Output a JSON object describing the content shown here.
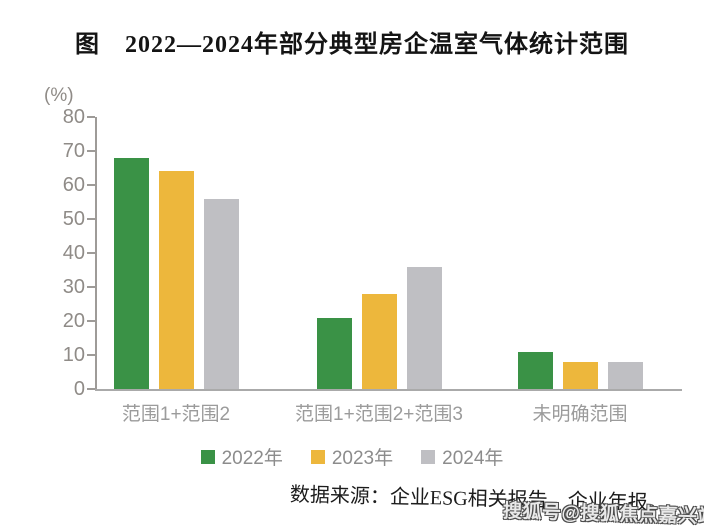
{
  "title": "图　2022—2024年部分典型房企温室气体统计范围",
  "chart_data": {
    "type": "bar",
    "title": "图　2022—2024年部分典型房企温室气体统计范围",
    "unit_label": "(%)",
    "categories": [
      "范围1+范围2",
      "范围1+范围2+范围3",
      "未明确范围"
    ],
    "series": [
      {
        "name": "2022年",
        "color": "#3a9246",
        "values": [
          68,
          21,
          11
        ]
      },
      {
        "name": "2023年",
        "color": "#edb73c",
        "values": [
          64,
          28,
          8
        ]
      },
      {
        "name": "2024年",
        "color": "#bfbfc3",
        "values": [
          56,
          36,
          8
        ]
      }
    ],
    "ylim": [
      0,
      80
    ],
    "yticks": [
      0,
      10,
      20,
      30,
      40,
      50,
      60,
      70,
      80
    ],
    "grid": false,
    "legend_position": "bottom"
  },
  "source_note": "数据来源：企业ESG相关报告、企业年报。",
  "watermark": "搜狐号@搜狐焦点嘉兴站",
  "colors": {
    "bar_2022": "#3a9246",
    "bar_2023": "#edb73c",
    "bar_2024": "#bfbfc3",
    "axis_line": "#9e9b98",
    "axis_text": "#8f8b87",
    "category_text": "#9b9b9b",
    "legend_text": "#8c8c8c",
    "title_text": "#141414",
    "source_text": "#1c1c1c",
    "background": "#ffffff"
  }
}
